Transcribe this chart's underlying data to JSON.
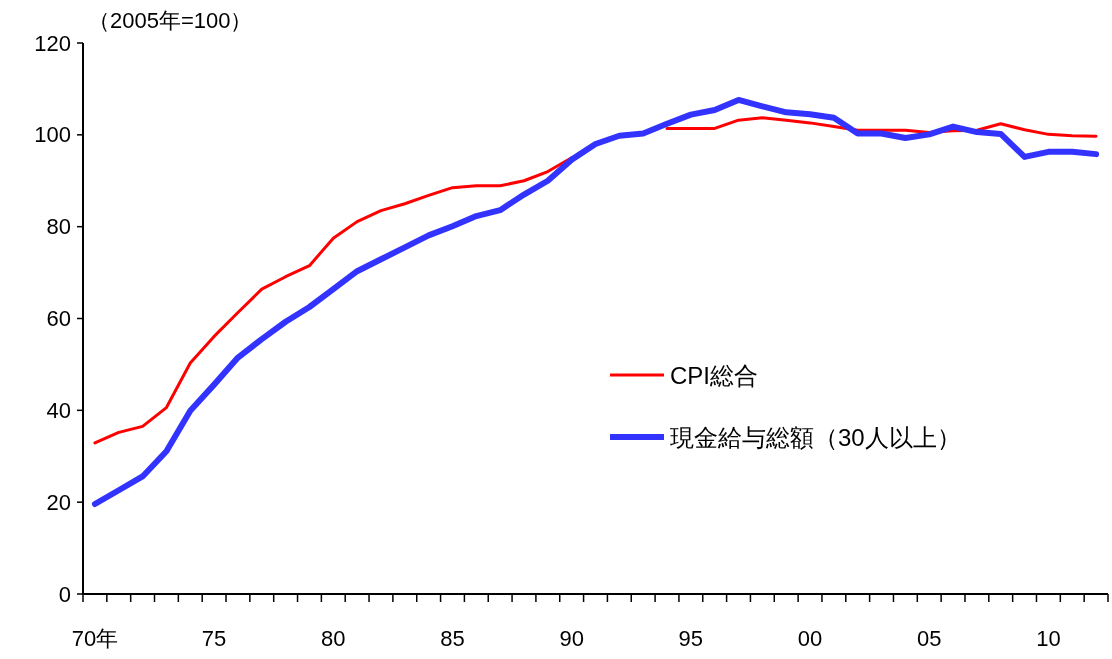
{
  "chart_data": {
    "type": "line",
    "categories": [
      "70年",
      null,
      null,
      null,
      null,
      "75",
      null,
      null,
      null,
      null,
      "80",
      null,
      null,
      null,
      null,
      "85",
      null,
      null,
      null,
      null,
      "90",
      null,
      null,
      null,
      null,
      "95",
      null,
      null,
      null,
      null,
      "00",
      null,
      null,
      null,
      null,
      "05",
      null,
      null,
      null,
      null,
      "10",
      null,
      null
    ],
    "series": [
      {
        "name": "CPI総合",
        "color": "#ff0000",
        "values": [
          32.9,
          35.2,
          36.5,
          40.6,
          50.3,
          56.1,
          61.3,
          66.4,
          69.1,
          71.5,
          77.5,
          81.1,
          83.5,
          85.0,
          86.8,
          88.5,
          88.9,
          88.9,
          90.0,
          92.0,
          95.0,
          null,
          null,
          null,
          101.4,
          101.4,
          101.4,
          103.2,
          103.7,
          103.2,
          102.6,
          101.8,
          101.0,
          101.0,
          101.0,
          100.5,
          100.9,
          101.0,
          102.4,
          101.1,
          100.1,
          99.8,
          99.7
        ]
      },
      {
        "name": "現金給与総額（30人以上）",
        "color": "#3333ff",
        "values": [
          19.6,
          22.6,
          25.6,
          31.1,
          39.9,
          45.6,
          51.5,
          55.5,
          59.3,
          62.5,
          66.4,
          70.3,
          72.9,
          75.5,
          78.1,
          80.1,
          82.3,
          83.6,
          87.0,
          90.0,
          94.6,
          98.0,
          99.8,
          100.3,
          102.4,
          104.4,
          105.4,
          107.6,
          106.2,
          104.9,
          104.5,
          103.7,
          100.3,
          100.3,
          99.3,
          100.1,
          101.8,
          100.6,
          100.2,
          95.2,
          96.3,
          96.3,
          95.8
        ]
      }
    ],
    "ylim": [
      0,
      120
    ],
    "yticks": [
      0,
      20,
      40,
      60,
      80,
      100,
      120
    ],
    "annotations": [
      "（2005年=100）"
    ],
    "legend": "right",
    "grid": false
  }
}
